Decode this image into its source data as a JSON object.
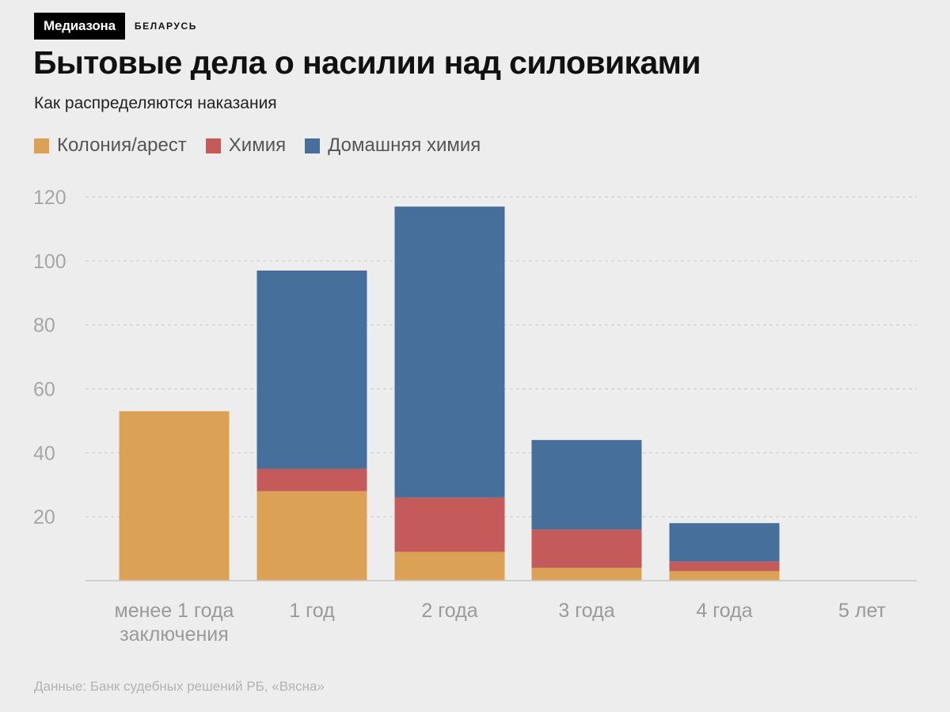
{
  "brand": {
    "logo": "Медиазона",
    "section": "БЕЛАРУСЬ"
  },
  "title": "Бытовые дела о насилии над силовиками",
  "subtitle": "Как распределяются наказания",
  "source": "Данные: Банк судебных решений РБ, «Вясна»",
  "chart_data": {
    "type": "bar",
    "stacked": true,
    "categories": [
      [
        "менее 1 года",
        "заключения"
      ],
      [
        "1 год"
      ],
      [
        "2 года"
      ],
      [
        "3 года"
      ],
      [
        "4 года"
      ],
      [
        "5 лет"
      ]
    ],
    "series": [
      {
        "name": "Колония/арест",
        "color": "#dba255",
        "values": [
          53,
          28,
          9,
          4,
          3,
          0
        ]
      },
      {
        "name": "Химия",
        "color": "#c55a5a",
        "values": [
          0,
          7,
          17,
          12,
          3,
          0
        ]
      },
      {
        "name": "Домашняя химия",
        "color": "#46709b",
        "values": [
          0,
          62,
          91,
          28,
          12,
          0
        ]
      }
    ],
    "ylim": [
      0,
      120
    ],
    "yticks": [
      20,
      40,
      60,
      80,
      100,
      120
    ],
    "grid": true,
    "legend_position": "top-left"
  }
}
